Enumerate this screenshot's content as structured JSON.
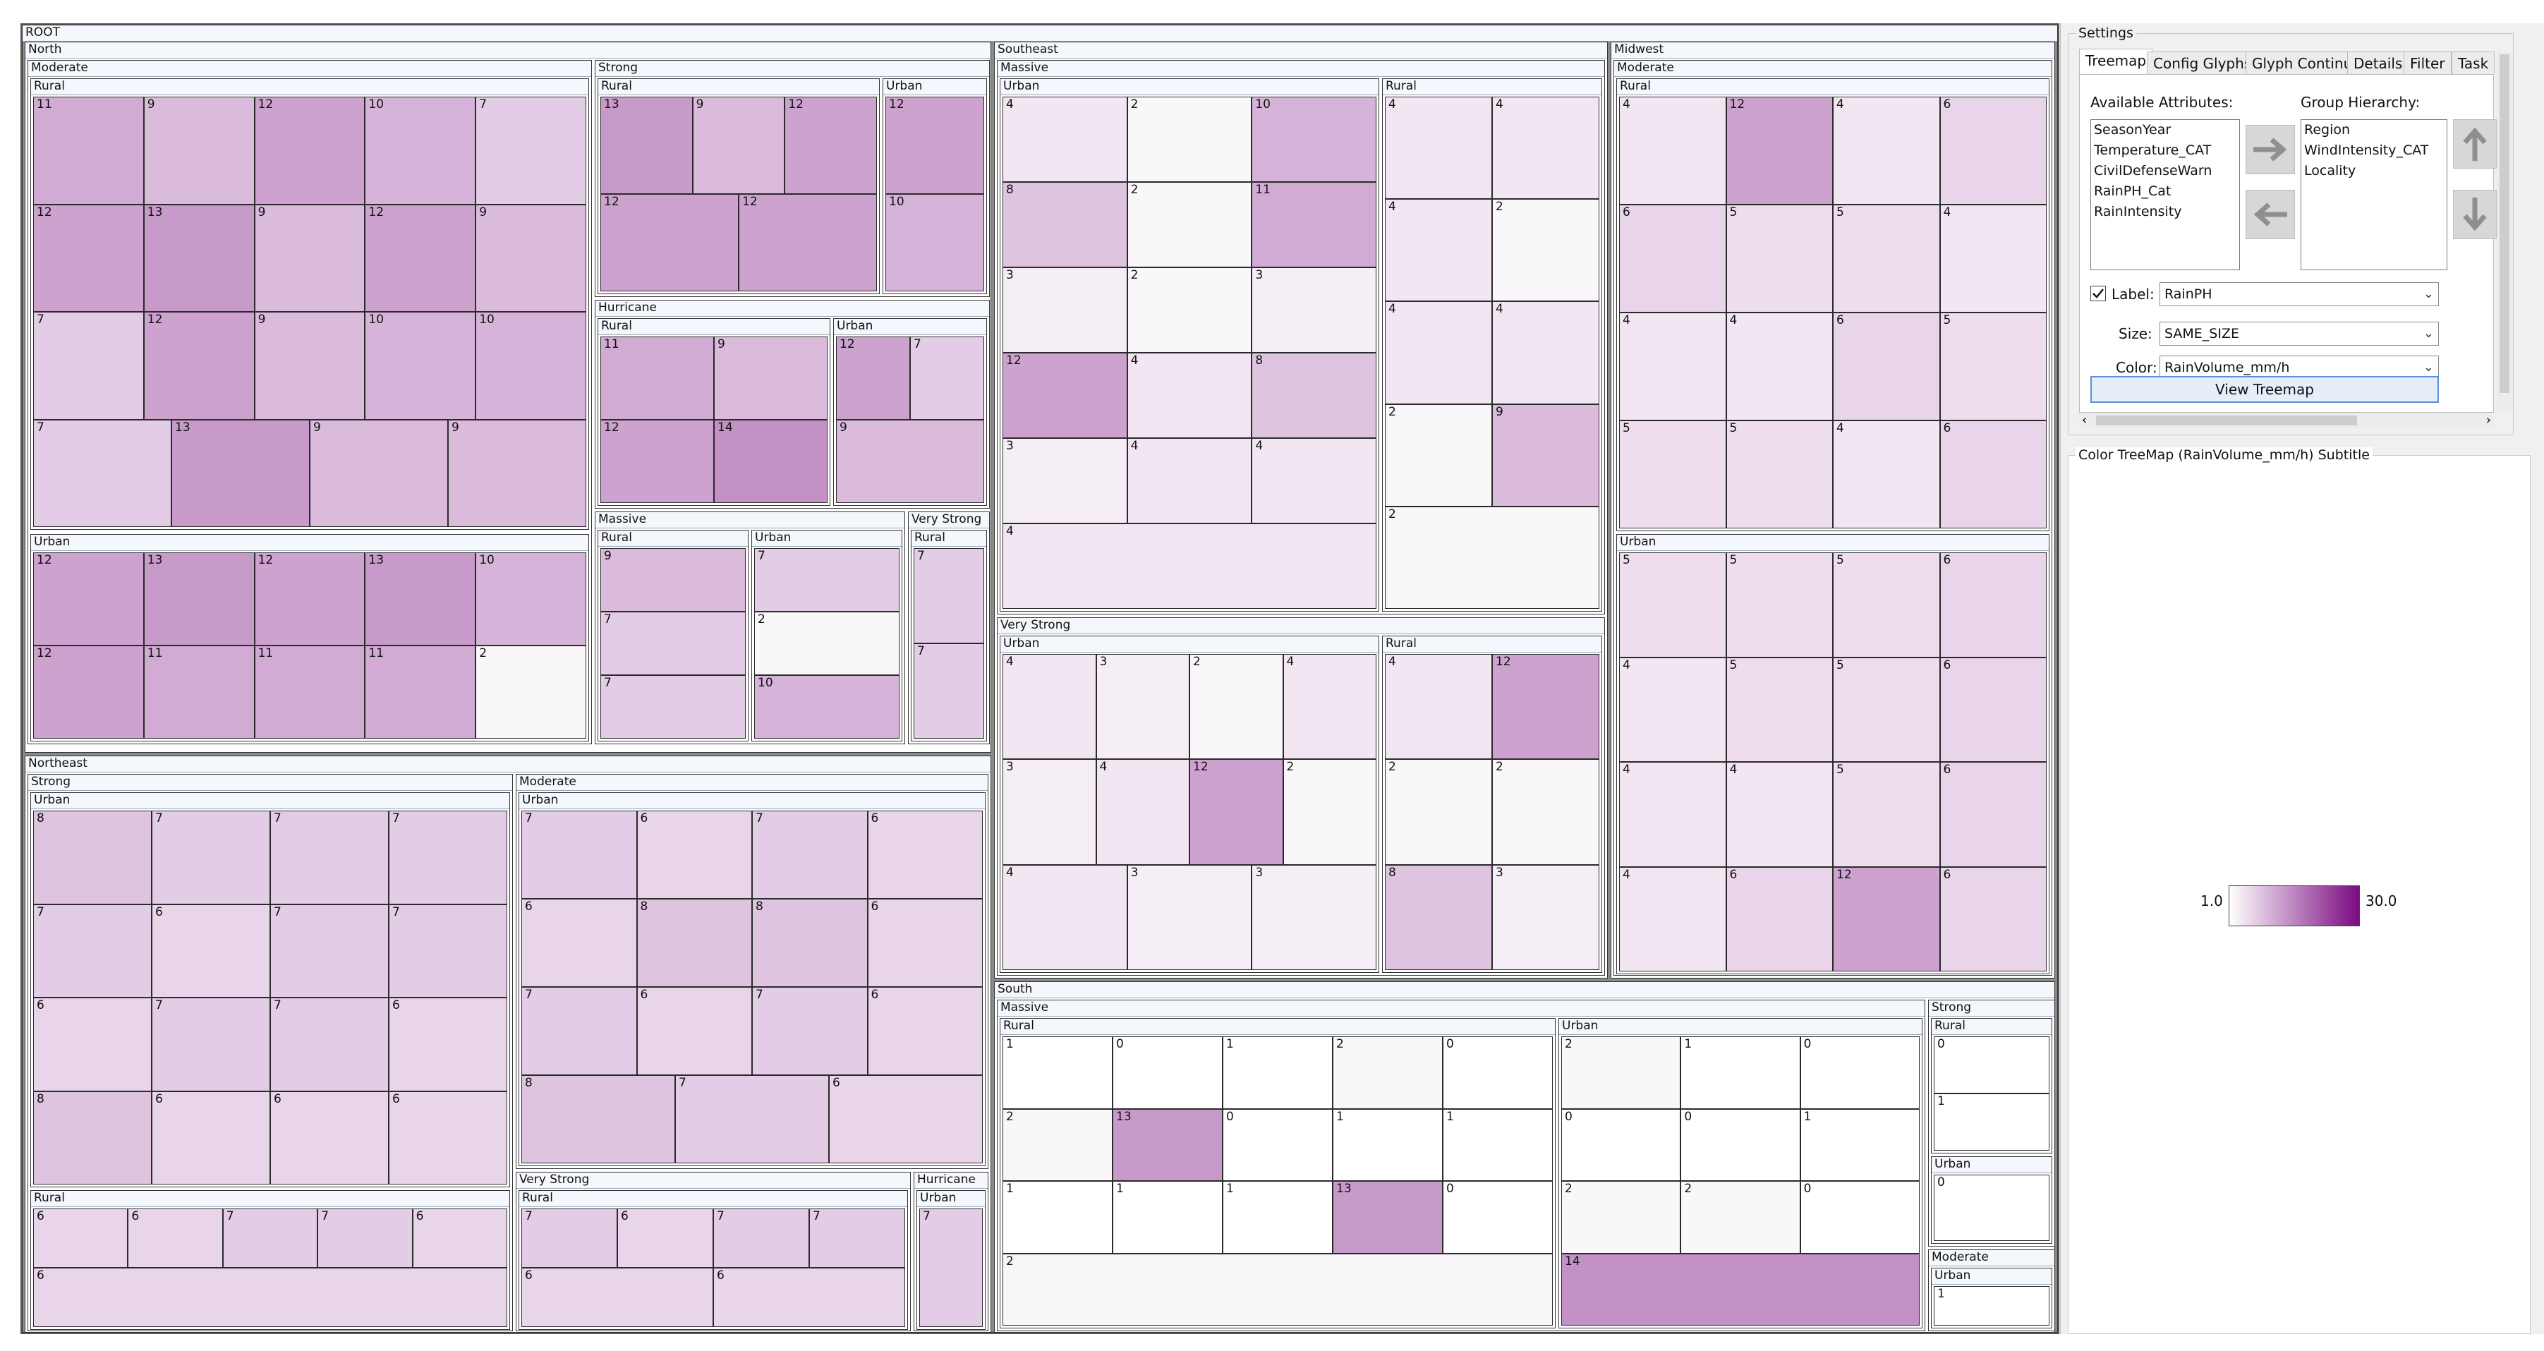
{
  "root_label": "ROOT",
  "color_scale": {
    "min": 1.0,
    "max": 30.0,
    "low_color": "#ffffff",
    "high_color": "#7a0a80"
  },
  "regions": [
    {
      "label": "North",
      "children": [
        {
          "label": "Moderate",
          "children": [
            {
              "label": "Rural",
              "values": [
                "11",
                "9",
                "12",
                "10",
                "7",
                "12",
                "13",
                "9",
                "12",
                "9",
                "7",
                "12",
                "9",
                "10",
                "10",
                "7",
                "13",
                "9",
                "9"
              ]
            },
            {
              "label": "Urban",
              "values": [
                "12",
                "13",
                "12",
                "13",
                "10",
                "12",
                "11",
                "11",
                "11",
                "2"
              ]
            }
          ]
        },
        {
          "label": "Strong",
          "children": [
            {
              "label": "Rural",
              "values": [
                "13",
                "9",
                "12",
                "12",
                "12"
              ]
            },
            {
              "label": "Urban",
              "values": [
                "12",
                "10"
              ]
            }
          ]
        },
        {
          "label": "Hurricane",
          "children": [
            {
              "label": "Rural",
              "values": [
                "11",
                "9",
                "12",
                "14"
              ]
            },
            {
              "label": "Urban",
              "values": [
                "12",
                "7",
                "9"
              ]
            }
          ]
        },
        {
          "label": "Massive",
          "children": [
            {
              "label": "Rural",
              "values": [
                "9",
                "7",
                "7"
              ]
            },
            {
              "label": "Urban",
              "values": [
                "7",
                "2",
                "10"
              ]
            }
          ]
        },
        {
          "label": "Very Strong",
          "children": [
            {
              "label": "Rural",
              "values": [
                "7",
                "7"
              ]
            }
          ]
        }
      ]
    },
    {
      "label": "Northeast",
      "children": [
        {
          "label": "Strong",
          "children": [
            {
              "label": "Urban",
              "values": [
                "8",
                "7",
                "7",
                "7",
                "7",
                "6",
                "7",
                "7",
                "6",
                "7",
                "7",
                "6",
                "8",
                "6",
                "6",
                "6"
              ]
            },
            {
              "label": "Rural",
              "values": [
                "6",
                "6",
                "7",
                "7",
                "6",
                "6"
              ]
            }
          ]
        },
        {
          "label": "Moderate",
          "children": [
            {
              "label": "Urban",
              "values": [
                "7",
                "6",
                "7",
                "6",
                "6",
                "8",
                "8",
                "6",
                "7",
                "6",
                "7",
                "6",
                "8",
                "7",
                "6"
              ]
            }
          ]
        },
        {
          "label": "Very Strong",
          "children": [
            {
              "label": "Rural",
              "values": [
                "7",
                "6",
                "7",
                "7",
                "6",
                "6"
              ]
            }
          ]
        },
        {
          "label": "Hurricane",
          "children": [
            {
              "label": "Urban",
              "values": [
                "7"
              ]
            }
          ]
        }
      ]
    },
    {
      "label": "Southeast",
      "children": [
        {
          "label": "Massive",
          "children": [
            {
              "label": "Urban",
              "values": [
                "4",
                "2",
                "10",
                "8",
                "2",
                "11",
                "3",
                "2",
                "3",
                "12",
                "4",
                "8",
                "3",
                "4",
                "4",
                "4"
              ]
            },
            {
              "label": "Rural",
              "values": [
                "4",
                "4",
                "4",
                "2",
                "4",
                "4",
                "2",
                "9",
                "2"
              ]
            }
          ]
        },
        {
          "label": "Very Strong",
          "children": [
            {
              "label": "Urban",
              "values": [
                "4",
                "3",
                "2",
                "4",
                "3",
                "4",
                "12",
                "2",
                "4",
                "3",
                "3"
              ]
            },
            {
              "label": "Rural",
              "values": [
                "4",
                "12",
                "2",
                "2",
                "8",
                "3"
              ]
            }
          ]
        }
      ]
    },
    {
      "label": "Midwest",
      "children": [
        {
          "label": "Moderate",
          "children": [
            {
              "label": "Rural",
              "values": [
                "4",
                "12",
                "4",
                "6",
                "6",
                "5",
                "5",
                "4",
                "4",
                "4",
                "6",
                "5",
                "5",
                "5",
                "4",
                "6"
              ]
            },
            {
              "label": "Urban",
              "values": [
                "5",
                "5",
                "5",
                "6",
                "4",
                "5",
                "5",
                "6",
                "4",
                "4",
                "5",
                "6",
                "4",
                "6",
                "12",
                "6"
              ]
            }
          ]
        }
      ]
    },
    {
      "label": "South",
      "children": [
        {
          "label": "Massive",
          "children": [
            {
              "label": "Rural",
              "values": [
                "1",
                "0",
                "1",
                "2",
                "0",
                "2",
                "13",
                "0",
                "1",
                "1",
                "1",
                "1",
                "1",
                "13",
                "0",
                "2"
              ]
            },
            {
              "label": "Urban",
              "values": [
                "2",
                "1",
                "0",
                "0",
                "0",
                "1",
                "2",
                "2",
                "0",
                "14"
              ]
            }
          ]
        },
        {
          "label": "Strong",
          "children": [
            {
              "label": "Rural",
              "values": [
                "0",
                "1"
              ]
            },
            {
              "label": "Urban",
              "values": [
                "0"
              ]
            }
          ]
        },
        {
          "label": "Moderate",
          "children": [
            {
              "label": "Urban",
              "values": [
                "1"
              ]
            }
          ]
        }
      ]
    }
  ],
  "settings": {
    "title": "Settings",
    "tabs": [
      "Treemap",
      "Config Glyphs",
      "Glyph Continuo",
      "Details",
      "Filter",
      "Task"
    ],
    "active_tab": "Treemap",
    "available_label": "Available Attributes:",
    "available": [
      "SeasonYear",
      "Temperature_CAT",
      "CivilDefenseWarn",
      "RainPH_Cat",
      "RainIntensity"
    ],
    "hierarchy_label": "Group Hierarchy:",
    "hierarchy": [
      "Region",
      "WindIntensity_CAT",
      "Locality"
    ],
    "label_checkbox": "Label:",
    "label_value": "RainPH",
    "size_label": "Size:",
    "size_value": "SAME_SIZE",
    "color_label": "Color:",
    "color_value": "RainVolume_mm/h",
    "view_button": "View Treemap",
    "legend_title": "Color TreeMap (RainVolume_mm/h) Subtitle",
    "legend_min": "1.0",
    "legend_max": "30.0"
  }
}
